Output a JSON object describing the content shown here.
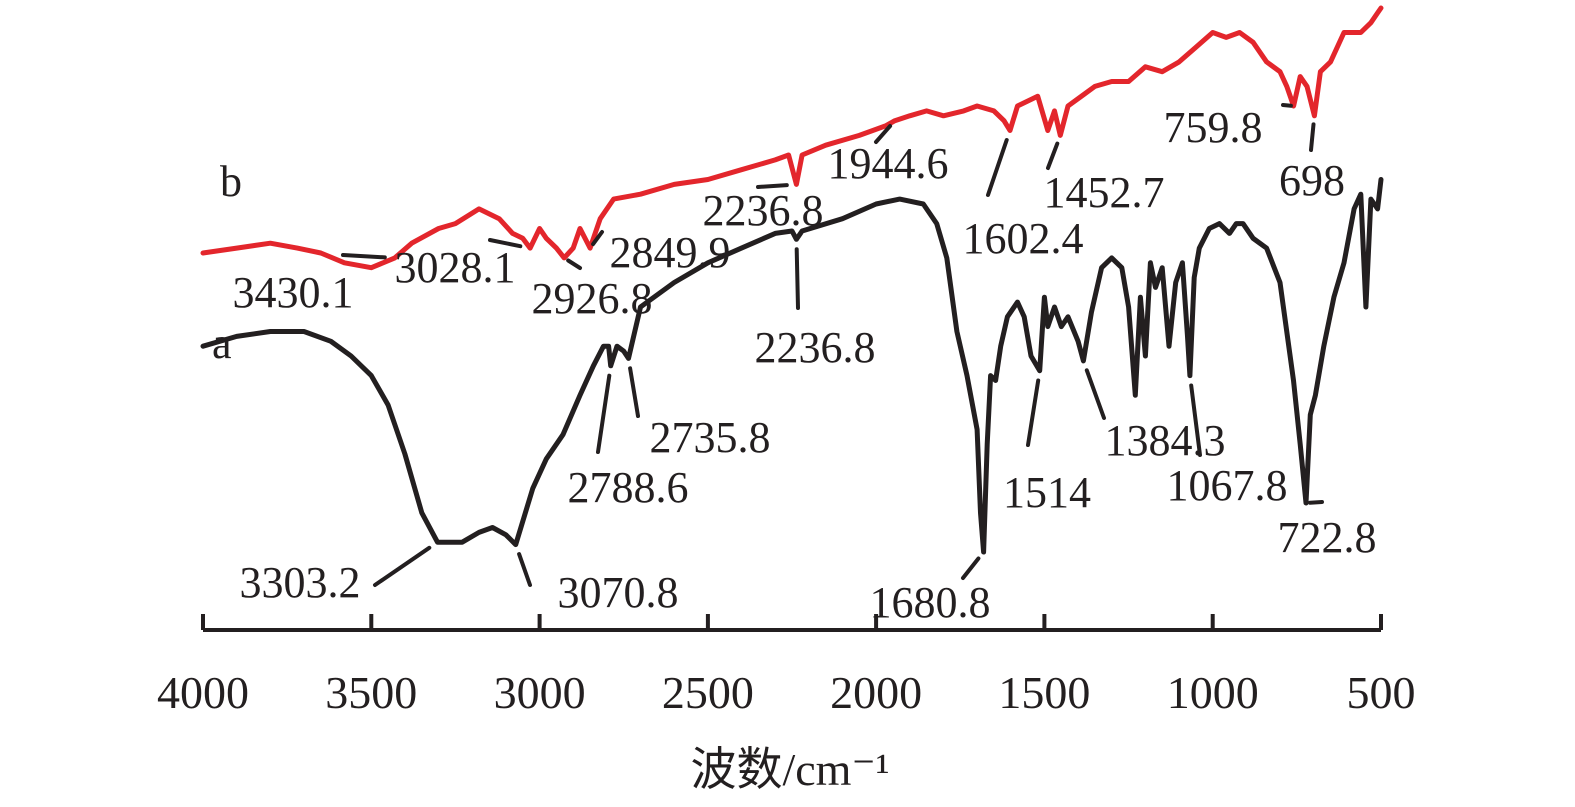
{
  "chart_data": {
    "type": "line",
    "title": "",
    "xlabel": "波数/cm⁻¹",
    "ylabel": "",
    "xlim": [
      4000,
      500
    ],
    "x_reversed": true,
    "x_ticks": [
      "4000",
      "3500",
      "3000",
      "2500",
      "2000",
      "1500",
      "1000",
      "500"
    ],
    "grid": false,
    "series": [
      {
        "name": "a",
        "color": "#231f20",
        "points": [
          [
            4000,
            0.62
          ],
          [
            3900,
            0.64
          ],
          [
            3800,
            0.65
          ],
          [
            3700,
            0.65
          ],
          [
            3620,
            0.63
          ],
          [
            3560,
            0.6
          ],
          [
            3500,
            0.56
          ],
          [
            3450,
            0.5
          ],
          [
            3400,
            0.4
          ],
          [
            3350,
            0.28
          ],
          [
            3303.2,
            0.22
          ],
          [
            3230,
            0.22
          ],
          [
            3180,
            0.24
          ],
          [
            3140,
            0.25
          ],
          [
            3100,
            0.235
          ],
          [
            3070.8,
            0.215
          ],
          [
            3020,
            0.33
          ],
          [
            2980,
            0.39
          ],
          [
            2930,
            0.44
          ],
          [
            2880,
            0.52
          ],
          [
            2840,
            0.58
          ],
          [
            2810,
            0.62
          ],
          [
            2795,
            0.62
          ],
          [
            2788.6,
            0.58
          ],
          [
            2770,
            0.62
          ],
          [
            2750,
            0.61
          ],
          [
            2735.8,
            0.595
          ],
          [
            2700,
            0.7
          ],
          [
            2600,
            0.75
          ],
          [
            2500,
            0.79
          ],
          [
            2400,
            0.82
          ],
          [
            2300,
            0.85
          ],
          [
            2250,
            0.855
          ],
          [
            2236.8,
            0.838
          ],
          [
            2220,
            0.855
          ],
          [
            2100,
            0.88
          ],
          [
            2000,
            0.91
          ],
          [
            1930,
            0.92
          ],
          [
            1860,
            0.91
          ],
          [
            1820,
            0.87
          ],
          [
            1790,
            0.8
          ],
          [
            1760,
            0.65
          ],
          [
            1730,
            0.56
          ],
          [
            1700,
            0.45
          ],
          [
            1690,
            0.28
          ],
          [
            1680.8,
            0.2
          ],
          [
            1670,
            0.42
          ],
          [
            1660,
            0.56
          ],
          [
            1645,
            0.55
          ],
          [
            1630,
            0.62
          ],
          [
            1610,
            0.68
          ],
          [
            1580,
            0.71
          ],
          [
            1560,
            0.68
          ],
          [
            1540,
            0.6
          ],
          [
            1514,
            0.57
          ],
          [
            1500,
            0.72
          ],
          [
            1490,
            0.66
          ],
          [
            1470,
            0.7
          ],
          [
            1450,
            0.66
          ],
          [
            1430,
            0.68
          ],
          [
            1400,
            0.63
          ],
          [
            1384.3,
            0.59
          ],
          [
            1360,
            0.69
          ],
          [
            1330,
            0.78
          ],
          [
            1300,
            0.8
          ],
          [
            1270,
            0.78
          ],
          [
            1250,
            0.7
          ],
          [
            1230,
            0.52
          ],
          [
            1215,
            0.72
          ],
          [
            1200,
            0.6
          ],
          [
            1185,
            0.79
          ],
          [
            1170,
            0.74
          ],
          [
            1150,
            0.78
          ],
          [
            1130,
            0.62
          ],
          [
            1110,
            0.75
          ],
          [
            1090,
            0.79
          ],
          [
            1075,
            0.64
          ],
          [
            1067.8,
            0.56
          ],
          [
            1055,
            0.76
          ],
          [
            1040,
            0.82
          ],
          [
            1010,
            0.86
          ],
          [
            980,
            0.87
          ],
          [
            950,
            0.85
          ],
          [
            930,
            0.87
          ],
          [
            910,
            0.87
          ],
          [
            880,
            0.84
          ],
          [
            860,
            0.83
          ],
          [
            840,
            0.82
          ],
          [
            800,
            0.75
          ],
          [
            760,
            0.55
          ],
          [
            740,
            0.42
          ],
          [
            722.8,
            0.3
          ],
          [
            710,
            0.48
          ],
          [
            695,
            0.52
          ],
          [
            670,
            0.62
          ],
          [
            640,
            0.72
          ],
          [
            610,
            0.79
          ],
          [
            580,
            0.9
          ],
          [
            560,
            0.93
          ],
          [
            545,
            0.7
          ],
          [
            530,
            0.92
          ],
          [
            510,
            0.9
          ],
          [
            500,
            0.96
          ]
        ],
        "peaks": [
          {
            "x": 3303.2,
            "label": "3303.2"
          },
          {
            "x": 3070.8,
            "label": "3070.8"
          },
          {
            "x": 2788.6,
            "label": "2788.6"
          },
          {
            "x": 2735.8,
            "label": "2735.8"
          },
          {
            "x": 2236.8,
            "label": "2236.8"
          },
          {
            "x": 1680.8,
            "label": "1680.8"
          },
          {
            "x": 1514,
            "label": "1514"
          },
          {
            "x": 1384.3,
            "label": "1384.3"
          },
          {
            "x": 1067.8,
            "label": "1067.8"
          },
          {
            "x": 722.8,
            "label": "722.8"
          }
        ]
      },
      {
        "name": "b",
        "color": "#e3262c",
        "points": [
          [
            4000,
            0.81
          ],
          [
            3900,
            0.82
          ],
          [
            3800,
            0.83
          ],
          [
            3720,
            0.82
          ],
          [
            3650,
            0.81
          ],
          [
            3580,
            0.79
          ],
          [
            3500,
            0.78
          ],
          [
            3430.1,
            0.8
          ],
          [
            3380,
            0.83
          ],
          [
            3300,
            0.86
          ],
          [
            3250,
            0.87
          ],
          [
            3180,
            0.9
          ],
          [
            3120,
            0.88
          ],
          [
            3080,
            0.85
          ],
          [
            3050,
            0.84
          ],
          [
            3028.1,
            0.82
          ],
          [
            3000,
            0.86
          ],
          [
            2980,
            0.84
          ],
          [
            2950,
            0.82
          ],
          [
            2926.8,
            0.8
          ],
          [
            2900,
            0.82
          ],
          [
            2880,
            0.86
          ],
          [
            2849.9,
            0.82
          ],
          [
            2820,
            0.88
          ],
          [
            2780,
            0.92
          ],
          [
            2700,
            0.93
          ],
          [
            2600,
            0.95
          ],
          [
            2500,
            0.96
          ],
          [
            2400,
            0.98
          ],
          [
            2300,
            1.0
          ],
          [
            2260,
            1.01
          ],
          [
            2236.8,
            0.95
          ],
          [
            2220,
            1.01
          ],
          [
            2150,
            1.03
          ],
          [
            2050,
            1.05
          ],
          [
            1970,
            1.07
          ],
          [
            1944.6,
            1.08
          ],
          [
            1900,
            1.09
          ],
          [
            1850,
            1.1
          ],
          [
            1800,
            1.09
          ],
          [
            1740,
            1.1
          ],
          [
            1700,
            1.11
          ],
          [
            1650,
            1.1
          ],
          [
            1620,
            1.08
          ],
          [
            1602.4,
            1.06
          ],
          [
            1580,
            1.11
          ],
          [
            1550,
            1.12
          ],
          [
            1520,
            1.13
          ],
          [
            1490,
            1.06
          ],
          [
            1470,
            1.1
          ],
          [
            1452.7,
            1.05
          ],
          [
            1430,
            1.11
          ],
          [
            1390,
            1.13
          ],
          [
            1350,
            1.15
          ],
          [
            1300,
            1.16
          ],
          [
            1250,
            1.16
          ],
          [
            1200,
            1.19
          ],
          [
            1150,
            1.18
          ],
          [
            1100,
            1.2
          ],
          [
            1050,
            1.23
          ],
          [
            1000,
            1.26
          ],
          [
            960,
            1.25
          ],
          [
            920,
            1.26
          ],
          [
            880,
            1.24
          ],
          [
            840,
            1.2
          ],
          [
            800,
            1.18
          ],
          [
            780,
            1.15
          ],
          [
            759.8,
            1.11
          ],
          [
            740,
            1.17
          ],
          [
            720,
            1.15
          ],
          [
            698,
            1.09
          ],
          [
            680,
            1.18
          ],
          [
            650,
            1.2
          ],
          [
            610,
            1.26
          ],
          [
            560,
            1.26
          ],
          [
            530,
            1.28
          ],
          [
            510,
            1.3
          ],
          [
            500,
            1.31
          ]
        ],
        "peaks": [
          {
            "x": 3430.1,
            "label": "3430.1"
          },
          {
            "x": 3028.1,
            "label": "3028.1"
          },
          {
            "x": 2926.8,
            "label": "2926.8"
          },
          {
            "x": 2849.9,
            "label": "2849.9"
          },
          {
            "x": 2236.8,
            "label": "2236.8"
          },
          {
            "x": 1944.6,
            "label": "1944.6"
          },
          {
            "x": 1602.4,
            "label": "1602.4"
          },
          {
            "x": 1452.7,
            "label": "1452.7"
          },
          {
            "x": 759.8,
            "label": "759.8"
          },
          {
            "x": 698,
            "label": "698"
          }
        ]
      }
    ]
  }
}
